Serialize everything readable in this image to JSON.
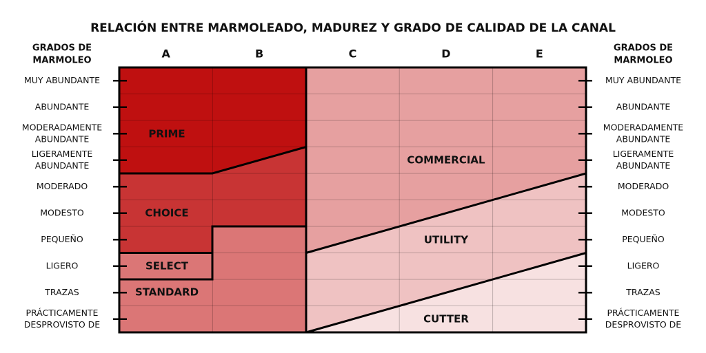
{
  "title": "RELACIÓN ENTRE MARMOLEADO, MADUREZ Y GRADO DE CALIDAD DE LA CANAL",
  "axis_header": [
    "GRADOS DE",
    "MARMOLEO"
  ],
  "columns": [
    "A",
    "B",
    "C",
    "D",
    "E"
  ],
  "rows": [
    [
      "MUY ABUNDANTE"
    ],
    [
      "ABUNDANTE"
    ],
    [
      "MODERADAMENTE",
      "ABUNDANTE"
    ],
    [
      "LIGERAMENTE",
      "ABUNDANTE"
    ],
    [
      "MODERADO"
    ],
    [
      "MODESTO"
    ],
    [
      "PEQUEÑO"
    ],
    [
      "LIGERO"
    ],
    [
      "TRAZAS"
    ],
    [
      "PRÁCTICAMENTE",
      "DESPROVISTO DE"
    ]
  ],
  "grades": [
    "PRIME",
    "CHOICE",
    "SELECT",
    "STANDARD",
    "COMMERCIAL",
    "UTILITY",
    "CUTTER"
  ]
}
